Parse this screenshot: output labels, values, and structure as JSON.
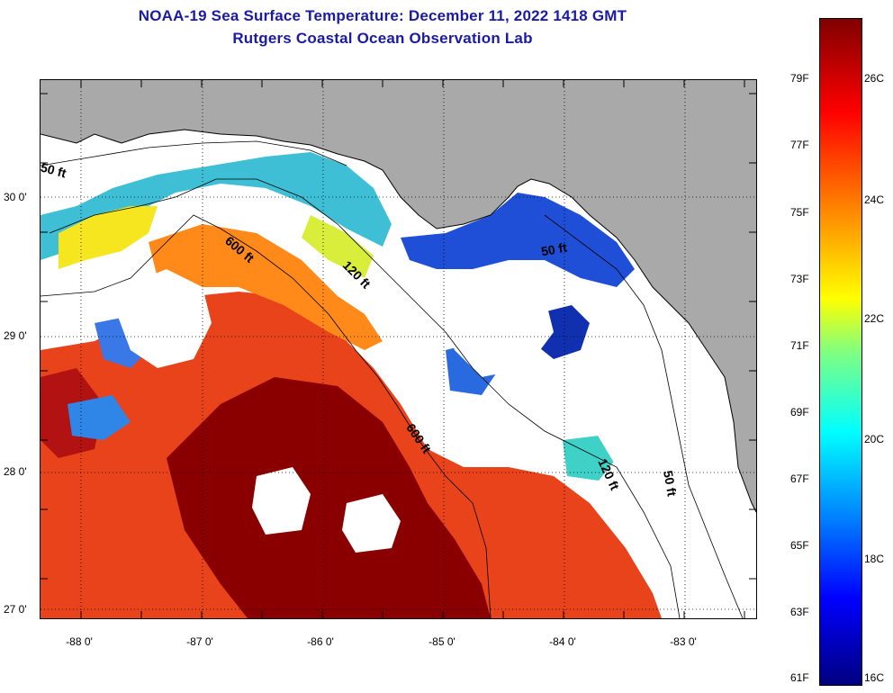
{
  "header": {
    "title": "NOAA-19 Sea Surface Temperature:  December 11, 2022 1418 GMT",
    "subtitle": "Rutgers Coastal Ocean Observation Lab"
  },
  "map": {
    "lat_labels": [
      "30 0'",
      "29 0'",
      "28 0'",
      "27 0'"
    ],
    "lon_labels": [
      "-88 0'",
      "-87 0'",
      "-86 0'",
      "-85 0'",
      "-84 0'",
      "-83 0'"
    ],
    "contour_labels": [
      "50 ft",
      "600 ft",
      "120 ft",
      "50 ft",
      "600 ft",
      "120 ft",
      "50 ft"
    ]
  },
  "colorbar": {
    "fahrenheit_labels": [
      "79F",
      "77F",
      "75F",
      "73F",
      "71F",
      "69F",
      "67F",
      "65F",
      "63F",
      "61F"
    ],
    "celsius_labels": [
      "26C",
      "24C",
      "22C",
      "20C",
      "18C",
      "16C"
    ],
    "colors": [
      "#000080",
      "#0000ff",
      "#0080ff",
      "#00ffff",
      "#80ff80",
      "#ffff00",
      "#ff8000",
      "#ff0000",
      "#800000"
    ]
  }
}
